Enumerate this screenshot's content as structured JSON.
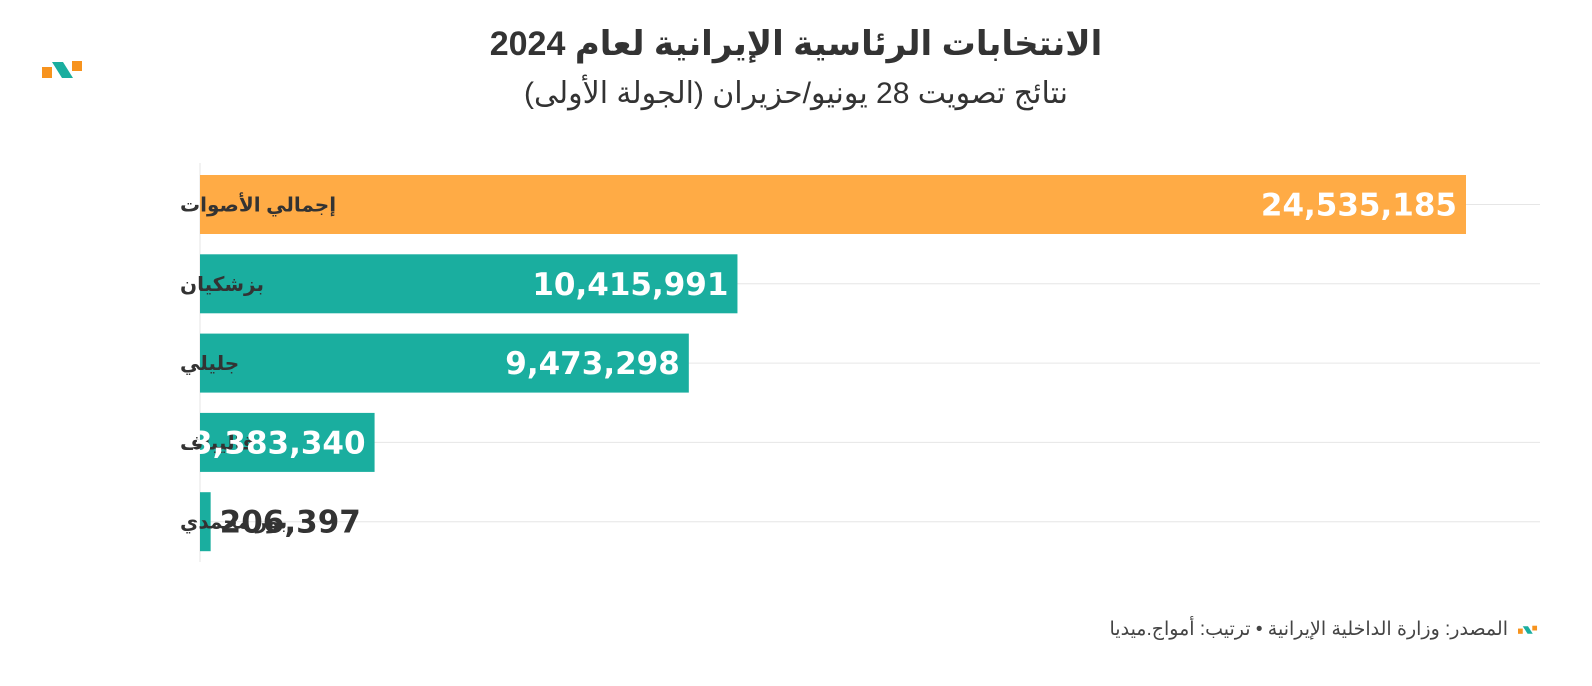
{
  "header": {
    "title": "الانتخابات الرئاسية الإيرانية لعام 2024",
    "subtitle": "نتائج تصويت 28 يونيو/حزيران (الجولة الأولى)"
  },
  "footer": {
    "source": "المصدر: وزارة الداخلية الإيرانية • ترتيب: أمواج.ميديا"
  },
  "colors": {
    "total_bar": "#FFAB45",
    "candidate_bar": "#1AAE9F",
    "label_text": "#333333",
    "value_inside": "#ffffff",
    "value_outside": "#333333",
    "grid": "#e6e6e6",
    "logo_orange": "#F7931E",
    "logo_teal": "#1AAE9F"
  },
  "chart_data": {
    "type": "bar",
    "orientation": "horizontal",
    "categories": [
      "إجمالي الأصوات",
      "بزشكيان",
      "جليلي",
      "قاليباف",
      "بور محمدي"
    ],
    "values": [
      24535185,
      10415991,
      9473298,
      3383340,
      206397
    ],
    "value_labels": [
      "24,535,185",
      "10,415,991",
      "9,473,298",
      "3,383,340",
      "206,397"
    ],
    "xlim": [
      0,
      26000000
    ],
    "grid": true,
    "legend": "none"
  }
}
